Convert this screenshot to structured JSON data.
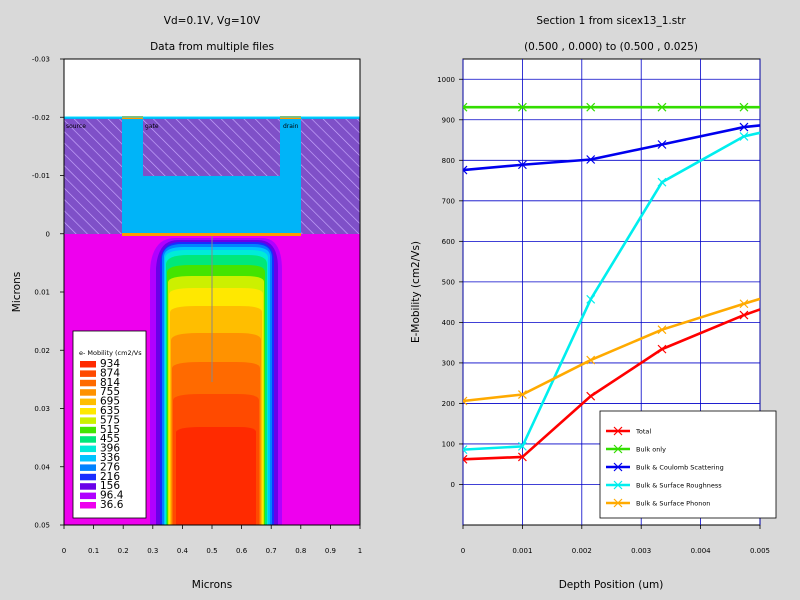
{
  "left_plot": {
    "title1": "Vd=0.1V,  Vg=10V",
    "title2": "Data from multiple files",
    "xlabel": "Microns",
    "ylabel": "Microns",
    "x_ticks": [
      "0",
      "0.1",
      "0.2",
      "0.3",
      "0.4",
      "0.5",
      "0.6",
      "0.7",
      "0.8",
      "0.9",
      "1"
    ],
    "y_ticks": [
      "-0.03",
      "-0.02",
      "-0.01",
      "0",
      "0.01",
      "0.02",
      "0.03",
      "0.04",
      "0.05"
    ],
    "xlim": [
      0,
      1
    ],
    "ylim": [
      -0.03,
      0.05
    ],
    "regions": {
      "source": "source",
      "gate": "gate",
      "drain": "drain"
    },
    "legend_title": "e- Mobility (cm2/Vs",
    "legend": [
      {
        "label": "934",
        "color": "#ff2a00"
      },
      {
        "label": "874",
        "color": "#ff4a00"
      },
      {
        "label": "814",
        "color": "#ff6a00"
      },
      {
        "label": "755",
        "color": "#ff9200"
      },
      {
        "label": "695",
        "color": "#ffbe00"
      },
      {
        "label": "635",
        "color": "#ffe800"
      },
      {
        "label": "575",
        "color": "#ccf000"
      },
      {
        "label": "515",
        "color": "#44e400"
      },
      {
        "label": "455",
        "color": "#00e87a"
      },
      {
        "label": "396",
        "color": "#00ecd8"
      },
      {
        "label": "336",
        "color": "#00c4ff"
      },
      {
        "label": "276",
        "color": "#0082ff"
      },
      {
        "label": "216",
        "color": "#1a2cff"
      },
      {
        "label": "156",
        "color": "#6a00e8"
      },
      {
        "label": "96.4",
        "color": "#b000ff"
      },
      {
        "label": "36.6",
        "color": "#ee00ee"
      }
    ]
  },
  "right_plot": {
    "title1": "Section 1 from sicex13_1.str",
    "title2": "(0.500 , 0.000) to (0.500 , 0.025)",
    "xlabel": "Depth Position (um)",
    "ylabel": "E-Mobility (cm2/Vs)"
  },
  "chart_data": {
    "type": "line",
    "title": "Section 1 from sicex13_1.str",
    "subtitle": "(0.500 , 0.000) to (0.500 , 0.025)",
    "xlabel": "Depth Position (um)",
    "ylabel": "E-Mobility (cm2/Vs)",
    "xlim": [
      0,
      0.005
    ],
    "ylim": [
      -100,
      1050
    ],
    "x_ticks": [
      0,
      0.001,
      0.002,
      0.003,
      0.004,
      0.005
    ],
    "x_tick_labels": [
      "0",
      "0.001",
      "0.002",
      "0.003",
      "0.004",
      "0.005"
    ],
    "y_ticks": [
      0,
      100,
      200,
      300,
      400,
      500,
      600,
      700,
      800,
      900,
      1000
    ],
    "grid": true,
    "legend_position": "bottom-right",
    "series": [
      {
        "name": "Total",
        "color": "#ff0000",
        "x": [
          0,
          0.001,
          0.00215,
          0.00335,
          0.00473,
          0.005
        ],
        "y": [
          62,
          68,
          218,
          334,
          418,
          432
        ]
      },
      {
        "name": "Bulk only",
        "color": "#33dd00",
        "x": [
          0,
          0.001,
          0.00215,
          0.00335,
          0.00473,
          0.005
        ],
        "y": [
          931,
          931,
          931,
          931,
          931,
          931
        ]
      },
      {
        "name": "Bulk & Coulomb Scattering",
        "color": "#0000ee",
        "x": [
          0,
          0.001,
          0.00215,
          0.00335,
          0.00473,
          0.005
        ],
        "y": [
          776,
          789,
          802,
          839,
          882,
          886
        ]
      },
      {
        "name": "Bulk & Surface Roughness",
        "color": "#00eeee",
        "x": [
          0,
          0.001,
          0.00215,
          0.00335,
          0.00473,
          0.005
        ],
        "y": [
          86,
          94,
          457,
          746,
          859,
          868
        ]
      },
      {
        "name": "Bulk & Surface Phonon",
        "color": "#ffaa00",
        "x": [
          0,
          0.001,
          0.00215,
          0.00335,
          0.00473,
          0.005
        ],
        "y": [
          206,
          222,
          307,
          382,
          446,
          458
        ]
      }
    ]
  }
}
